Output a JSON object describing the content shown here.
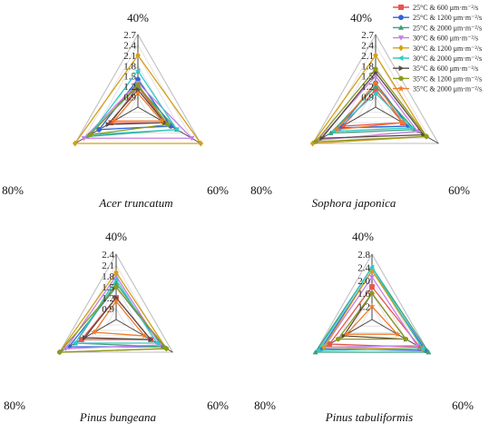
{
  "legend": {
    "entries": [
      {
        "label": "25°C & 600  μm·m⁻²/s",
        "color": "#e8534f",
        "marker": "square"
      },
      {
        "label": "25°C & 1200 μm·m⁻²/s",
        "color": "#2f66d8",
        "marker": "circle"
      },
      {
        "label": "25°C & 2000 μm·m⁻²/s",
        "color": "#3aa27a",
        "marker": "triangle-up"
      },
      {
        "label": "30°C & 600  μm·m⁻²/s",
        "color": "#c77fe6",
        "marker": "triangle-down"
      },
      {
        "label": "30°C & 1200 μm·m⁻²/s",
        "color": "#d4a017",
        "marker": "diamond"
      },
      {
        "label": "30°C & 2000 μm·m⁻²/s",
        "color": "#33c9c9",
        "marker": "triangle-left"
      },
      {
        "label": "35°C & 600  μm·m⁻²/s",
        "color": "#5a4a42",
        "marker": "triangle-right"
      },
      {
        "label": "35°C & 1200 μm·m⁻²/s",
        "color": "#8a9a1c",
        "marker": "hexagon"
      },
      {
        "label": "35°C & 2000 μm·m⁻²/s",
        "color": "#f07b2a",
        "marker": "star"
      }
    ]
  },
  "chart_data": [
    {
      "type": "radar",
      "title": "Acer truncatum",
      "axes": [
        "40%",
        "60%",
        "80%"
      ],
      "rmin": 0.6,
      "rmax": 2.7,
      "ticks": [
        "0.9",
        "1.2",
        "1.5",
        "1.8",
        "2.1",
        "2.4",
        "2.7"
      ],
      "series": [
        {
          "values": [
            1.2,
            1.5,
            1.5
          ]
        },
        {
          "values": [
            1.4,
            1.7,
            1.9
          ]
        },
        {
          "values": [
            1.2,
            1.9,
            2.3
          ]
        },
        {
          "values": [
            1.3,
            2.4,
            2.4
          ]
        },
        {
          "values": [
            2.1,
            2.7,
            2.7
          ]
        },
        {
          "values": [
            1.65,
            1.9,
            2.2
          ]
        },
        {
          "values": [
            1.1,
            1.5,
            1.6
          ]
        },
        {
          "values": [
            1.25,
            1.6,
            2.2
          ]
        },
        {
          "values": [
            1.0,
            1.4,
            1.4
          ]
        }
      ]
    },
    {
      "type": "radar",
      "title": "Sophora japonica",
      "axes": [
        "40%",
        "60%",
        "80%"
      ],
      "rmin": 0.6,
      "rmax": 2.7,
      "ticks": [
        "0.9",
        "1.2",
        "1.5",
        "1.8",
        "2.1",
        "2.4",
        "2.7"
      ],
      "series": [
        {
          "values": [
            1.1,
            1.5,
            1.7
          ]
        },
        {
          "values": [
            1.3,
            1.7,
            1.8
          ]
        },
        {
          "values": [
            1.2,
            1.9,
            2.1
          ]
        },
        {
          "values": [
            1.5,
            2.0,
            2.5
          ]
        },
        {
          "values": [
            2.1,
            2.3,
            2.7
          ]
        },
        {
          "values": [
            1.0,
            1.8,
            2.0
          ]
        },
        {
          "values": [
            1.6,
            2.2,
            2.4
          ]
        },
        {
          "values": [
            1.7,
            2.3,
            2.6
          ]
        },
        {
          "values": [
            1.3,
            1.5,
            1.9
          ]
        }
      ]
    },
    {
      "type": "radar",
      "title": "Pinus bungeana",
      "axes": [
        "40%",
        "60%",
        "80%"
      ],
      "rmin": 0.6,
      "rmax": 2.4,
      "ticks": [
        "0.9",
        "1.2",
        "1.5",
        "1.8",
        "2.1",
        "2.4"
      ],
      "series": [
        {
          "values": [
            1.2,
            1.7,
            1.7
          ]
        },
        {
          "values": [
            1.5,
            2.1,
            2.1
          ]
        },
        {
          "values": [
            1.6,
            2.1,
            1.9
          ]
        },
        {
          "values": [
            1.8,
            2.0,
            2.2
          ]
        },
        {
          "values": [
            1.9,
            2.2,
            2.4
          ]
        },
        {
          "values": [
            1.7,
            1.9,
            1.9
          ]
        },
        {
          "values": [
            1.2,
            1.7,
            1.6
          ]
        },
        {
          "values": [
            1.5,
            2.2,
            2.4
          ]
        },
        {
          "values": [
            1.1,
            1.5,
            1.3
          ]
        }
      ]
    },
    {
      "type": "radar",
      "title": "Pinus tabuliformis",
      "axes": [
        "40%",
        "60%",
        "80%"
      ],
      "rmin": 0.8,
      "rmax": 2.8,
      "ticks": [
        "1.2",
        "1.6",
        "2.0",
        "2.4",
        "2.8"
      ],
      "series": [
        {
          "values": [
            1.8,
            2.5,
            2.3
          ]
        },
        {
          "values": [
            2.3,
            2.7,
            2.6
          ]
        },
        {
          "values": [
            2.4,
            2.8,
            2.8
          ]
        },
        {
          "values": [
            2.1,
            2.4,
            2.5
          ]
        },
        {
          "values": [
            2.3,
            2.6,
            2.5
          ]
        },
        {
          "values": [
            2.4,
            2.6,
            2.7
          ]
        },
        {
          "values": [
            1.6,
            2.0,
            1.8
          ]
        },
        {
          "values": [
            1.6,
            2.0,
            2.0
          ]
        },
        {
          "values": [
            1.2,
            1.7,
            1.7
          ]
        }
      ]
    }
  ]
}
